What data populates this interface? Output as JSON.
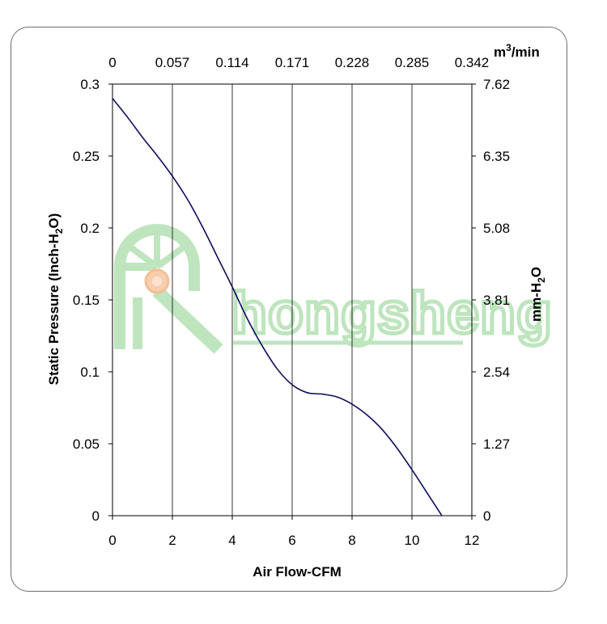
{
  "chart_data": {
    "type": "line",
    "title": "",
    "xlabel": "Air Flow-CFM",
    "ylabel_left_main": "Static Pressure (Inch-H",
    "ylabel_left_sub": "2",
    "ylabel_left_end": "O)",
    "ylabel_right_main": "mm-H",
    "ylabel_right_sub": "2",
    "ylabel_right_end": "O",
    "xlabel_top_main": "m",
    "xlabel_top_sup": "3",
    "xlabel_top_end": "/min",
    "xlim": [
      0,
      12
    ],
    "ylim": [
      0,
      0.3
    ],
    "x_ticks": [
      "0",
      "2",
      "4",
      "6",
      "8",
      "10",
      "12"
    ],
    "y_ticks": [
      "0",
      "0.05",
      "0.1",
      "0.15",
      "0.2",
      "0.25",
      "0.3"
    ],
    "top_ticks": [
      "0",
      "0.057",
      "0.114",
      "0.171",
      "0.228",
      "0.285",
      "0.342"
    ],
    "right_ticks": [
      "0",
      "1.27",
      "2.54",
      "3.81",
      "5.08",
      "6.35",
      "7.62"
    ],
    "grid": "vertical",
    "series": [
      {
        "x": [
          0,
          0.5,
          1,
          1.5,
          2,
          2.5,
          3,
          3.5,
          4,
          4.5,
          5,
          5.5,
          6,
          6.5,
          7,
          7.5,
          8,
          8.5,
          9,
          9.5,
          10,
          10.5,
          11
        ],
        "values": [
          0.29,
          0.277,
          0.263,
          0.25,
          0.236,
          0.22,
          0.201,
          0.18,
          0.159,
          0.137,
          0.118,
          0.102,
          0.091,
          0.0855,
          0.0845,
          0.0825,
          0.0775,
          0.07,
          0.06,
          0.047,
          0.032,
          0.016,
          0
        ]
      }
    ],
    "line_color": "#0d0d5e",
    "watermark": "hongsheng",
    "watermark_color": "#b8e3b8"
  }
}
